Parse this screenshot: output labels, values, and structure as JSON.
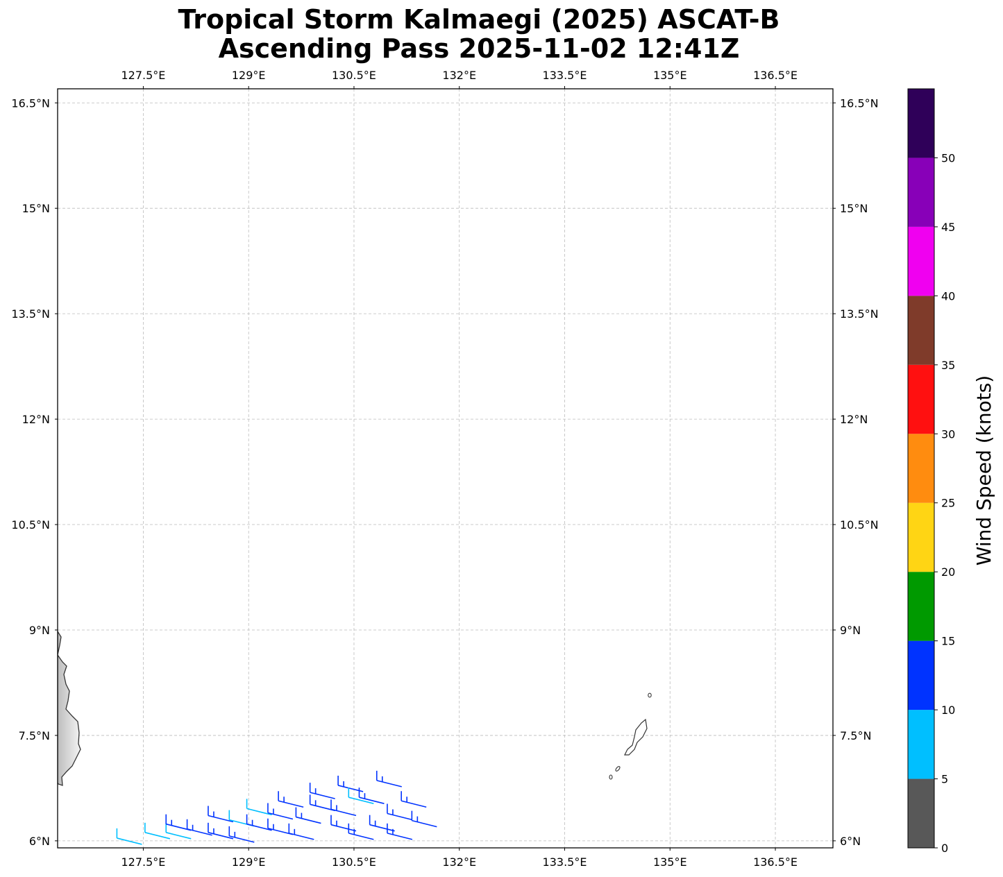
{
  "title": {
    "line1": "Tropical Storm Kalmaegi (2025) ASCAT-B",
    "line2": "Ascending Pass 2025-11-02 12:41Z"
  },
  "map": {
    "lon_range": [
      126.28,
      137.32
    ],
    "lat_range": [
      5.9,
      16.7
    ],
    "lon_ticks": [
      127.5,
      129,
      130.5,
      132,
      133.5,
      135,
      136.5
    ],
    "lon_tick_labels": [
      "127.5°E",
      "129°E",
      "130.5°E",
      "132°E",
      "133.5°E",
      "135°E",
      "136.5°E"
    ],
    "lat_ticks": [
      6,
      7.5,
      9,
      10.5,
      12,
      13.5,
      15,
      16.5
    ],
    "lat_tick_labels": [
      "6°N",
      "7.5°N",
      "9°N",
      "10.5°N",
      "12°N",
      "13.5°N",
      "15°N",
      "16.5°N"
    ],
    "grid": true
  },
  "colorbar": {
    "label": "Wind Speed (knots)",
    "ticks": [
      "0",
      "5",
      "10",
      "15",
      "20",
      "25",
      "30",
      "35",
      "40",
      "45",
      "50"
    ],
    "bins": [
      {
        "from": 0,
        "to": 5,
        "color": "#585858"
      },
      {
        "from": 5,
        "to": 10,
        "color": "#00bfff"
      },
      {
        "from": 10,
        "to": 15,
        "color": "#0033ff"
      },
      {
        "from": 15,
        "to": 20,
        "color": "#009a00"
      },
      {
        "from": 20,
        "to": 25,
        "color": "#ffd514"
      },
      {
        "from": 25,
        "to": 30,
        "color": "#ff8c0f"
      },
      {
        "from": 30,
        "to": 35,
        "color": "#ff1010"
      },
      {
        "from": 35,
        "to": 40,
        "color": "#7f3b2a"
      },
      {
        "from": 40,
        "to": 45,
        "color": "#f000f0"
      },
      {
        "from": 45,
        "to": 50,
        "color": "#8800b8"
      },
      {
        "from": 50,
        "to": 55,
        "color": "#2f0059"
      }
    ]
  },
  "chart_data": {
    "type": "scatter",
    "title": "Tropical Storm Kalmaegi (2025) ASCAT-B Ascending Pass 2025-11-02 12:41Z",
    "xlabel": "",
    "ylabel": "",
    "xlim": [
      126.28,
      137.32
    ],
    "ylim": [
      5.9,
      16.7
    ],
    "value_label": "Wind Speed (knots)",
    "points": [
      {
        "lon": 127.48,
        "lat": 5.95,
        "speed": 8
      },
      {
        "lon": 127.88,
        "lat": 6.03,
        "speed": 8
      },
      {
        "lon": 128.18,
        "lat": 6.03,
        "speed": 8
      },
      {
        "lon": 128.18,
        "lat": 6.15,
        "speed": 12
      },
      {
        "lon": 128.48,
        "lat": 6.08,
        "speed": 12
      },
      {
        "lon": 128.78,
        "lat": 6.03,
        "speed": 12
      },
      {
        "lon": 128.78,
        "lat": 6.27,
        "speed": 12
      },
      {
        "lon": 129.08,
        "lat": 6.21,
        "speed": 8
      },
      {
        "lon": 129.08,
        "lat": 5.98,
        "speed": 12
      },
      {
        "lon": 129.33,
        "lat": 6.15,
        "speed": 12
      },
      {
        "lon": 129.33,
        "lat": 6.37,
        "speed": 8
      },
      {
        "lon": 129.63,
        "lat": 6.09,
        "speed": 12
      },
      {
        "lon": 129.63,
        "lat": 6.31,
        "speed": 12
      },
      {
        "lon": 129.78,
        "lat": 6.48,
        "speed": 12
      },
      {
        "lon": 129.93,
        "lat": 6.02,
        "speed": 12
      },
      {
        "lon": 130.03,
        "lat": 6.25,
        "speed": 12
      },
      {
        "lon": 130.23,
        "lat": 6.43,
        "speed": 12
      },
      {
        "lon": 130.23,
        "lat": 6.6,
        "speed": 12
      },
      {
        "lon": 130.53,
        "lat": 6.36,
        "speed": 12
      },
      {
        "lon": 130.63,
        "lat": 6.7,
        "speed": 12
      },
      {
        "lon": 130.53,
        "lat": 6.14,
        "speed": 12
      },
      {
        "lon": 130.78,
        "lat": 6.02,
        "speed": 12
      },
      {
        "lon": 130.78,
        "lat": 6.53,
        "speed": 8
      },
      {
        "lon": 130.93,
        "lat": 6.53,
        "speed": 12
      },
      {
        "lon": 131.08,
        "lat": 6.14,
        "speed": 12
      },
      {
        "lon": 131.18,
        "lat": 6.77,
        "speed": 12
      },
      {
        "lon": 131.33,
        "lat": 6.3,
        "speed": 12
      },
      {
        "lon": 131.33,
        "lat": 6.02,
        "speed": 12
      },
      {
        "lon": 131.53,
        "lat": 6.48,
        "speed": 12
      },
      {
        "lon": 131.68,
        "lat": 6.2,
        "speed": 12
      }
    ]
  }
}
